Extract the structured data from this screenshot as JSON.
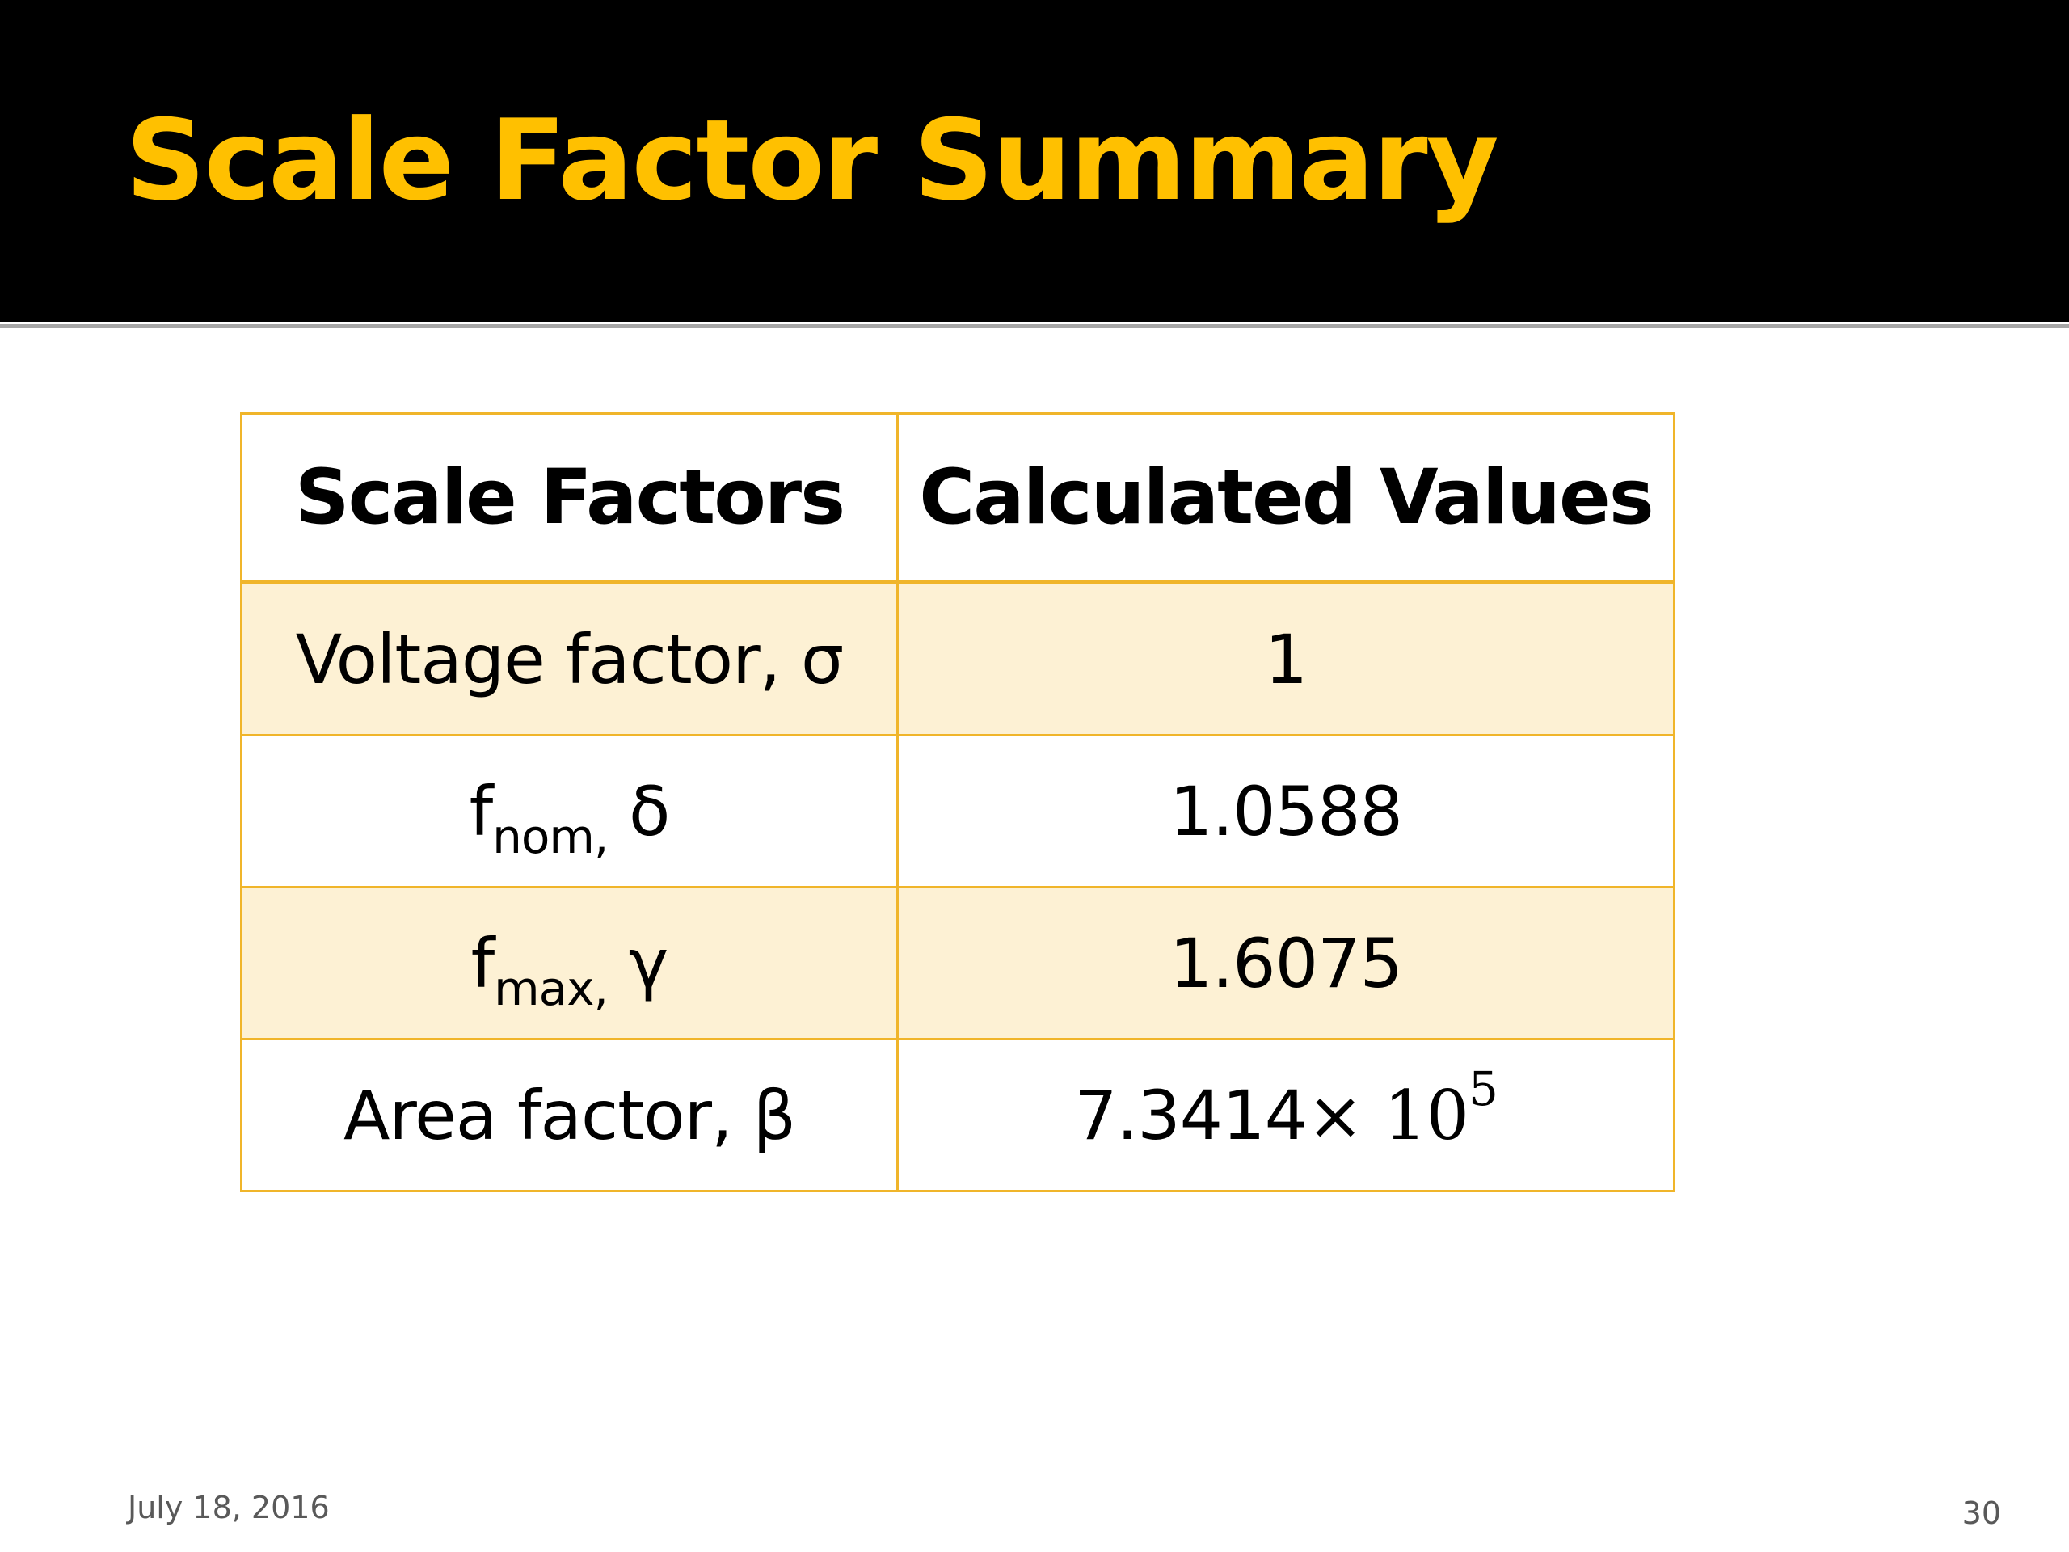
{
  "slide": {
    "title": "Scale Factor Summary",
    "footer_date": "July 18, 2016",
    "page_number": "30"
  },
  "table": {
    "headers": [
      "Scale Factors",
      "Calculated Values"
    ],
    "rows": [
      {
        "name_main": "Voltage factor, σ",
        "name_sub": "",
        "name_tail": "",
        "value_main": "1",
        "value_exp_base": "",
        "value_exp": ""
      },
      {
        "name_main": "f",
        "name_sub": "nom,",
        "name_tail": " δ",
        "value_main": "1.0588",
        "value_exp_base": "",
        "value_exp": ""
      },
      {
        "name_main": "f",
        "name_sub": "max,",
        "name_tail": " γ",
        "value_main": "1.6075",
        "value_exp_base": "",
        "value_exp": ""
      },
      {
        "name_main": "Area factor, β",
        "name_sub": "",
        "name_tail": "",
        "value_main": "7.3414×",
        "value_exp_base": " 10",
        "value_exp": "5"
      }
    ]
  },
  "colors": {
    "title": "#ffc000",
    "title_bar": "#000000",
    "table_border": "#f0b52a",
    "shaded_row": "#fdf1d4"
  }
}
